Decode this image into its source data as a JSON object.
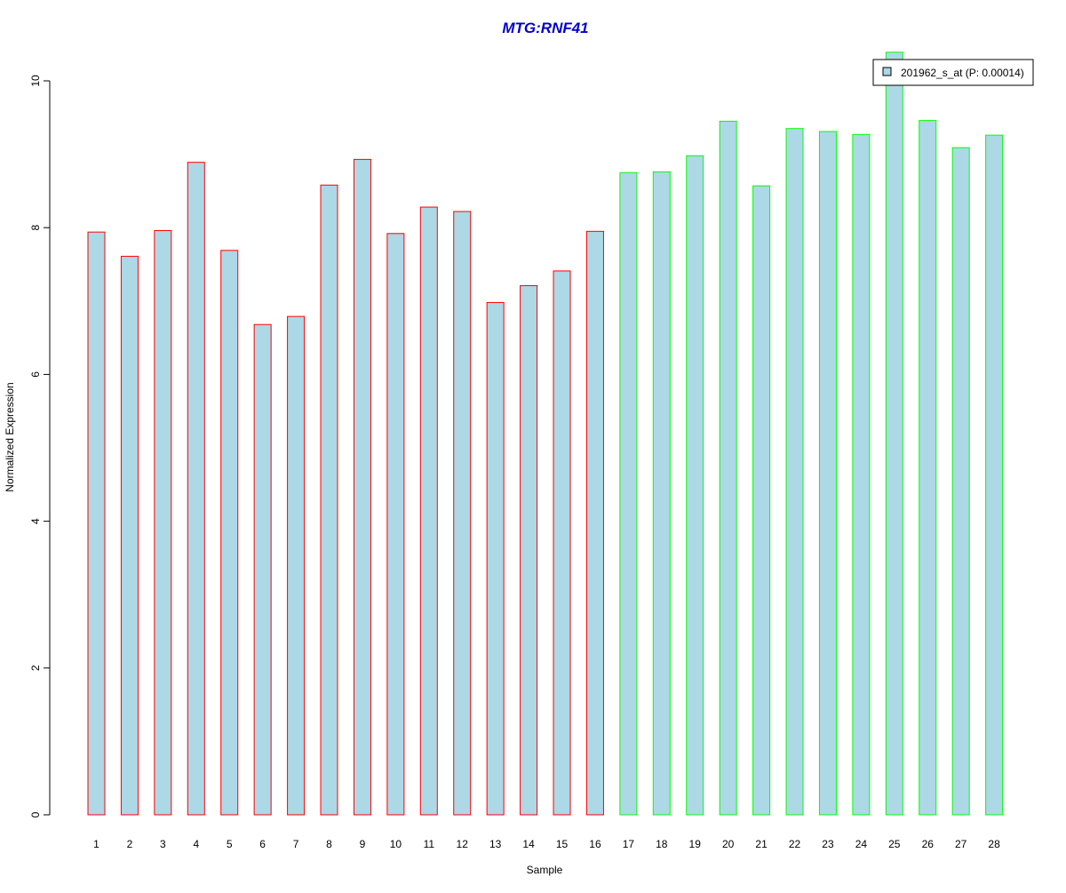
{
  "chart_data": {
    "type": "bar",
    "title": "MTG:RNF41",
    "xlabel": "Sample",
    "ylabel": "Normalized Expression",
    "ylim": [
      0,
      10.5
    ],
    "yticks": [
      0,
      2,
      4,
      6,
      8,
      10
    ],
    "categories": [
      "1",
      "2",
      "3",
      "4",
      "5",
      "6",
      "7",
      "8",
      "9",
      "10",
      "11",
      "12",
      "13",
      "14",
      "15",
      "16",
      "17",
      "18",
      "19",
      "20",
      "21",
      "22",
      "23",
      "24",
      "25",
      "26",
      "27",
      "28"
    ],
    "series": [
      {
        "name": "201962_s_at (P: 0.00014)",
        "values": [
          7.94,
          7.61,
          7.96,
          8.89,
          7.69,
          6.68,
          6.79,
          8.58,
          8.93,
          7.92,
          8.28,
          8.22,
          6.98,
          7.21,
          7.41,
          7.95,
          8.75,
          8.76,
          8.98,
          9.45,
          8.57,
          9.35,
          9.31,
          9.27,
          10.39,
          9.46,
          9.09,
          9.26
        ]
      }
    ],
    "groups": [
      1,
      1,
      1,
      1,
      1,
      1,
      1,
      1,
      1,
      1,
      1,
      1,
      1,
      1,
      1,
      1,
      2,
      2,
      2,
      2,
      2,
      2,
      2,
      2,
      2,
      2,
      2,
      2
    ],
    "colors": {
      "fill": "#add8e6",
      "group_1_border": "#ff0000",
      "group_2_border": "#00ff00",
      "title": "#0000cd",
      "axis": "#000000"
    },
    "grid": false,
    "legend_position": "top-right"
  }
}
